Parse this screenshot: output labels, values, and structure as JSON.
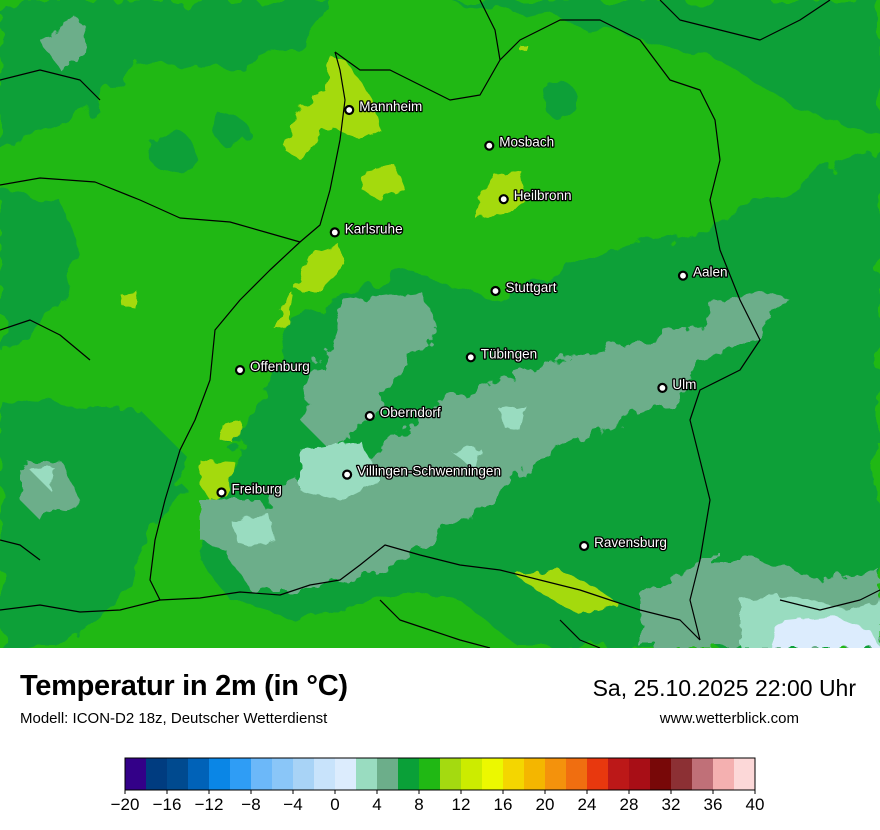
{
  "title": "Temperatur in 2m (in °C)",
  "subtitle": "Modell: ICON-D2 18z, Deutscher Wetterdienst",
  "datetime": "Sa, 25.10.2025 22:00 Uhr",
  "website": "www.wetterblick.com",
  "cities": [
    {
      "name": "Mannheim",
      "lon": 8.47,
      "lat": 49.49
    },
    {
      "name": "Mosbach",
      "lon": 9.15,
      "lat": 49.35
    },
    {
      "name": "Heilbronn",
      "lon": 9.22,
      "lat": 49.14
    },
    {
      "name": "Karlsruhe",
      "lon": 8.4,
      "lat": 49.01
    },
    {
      "name": "Aalen",
      "lon": 10.09,
      "lat": 48.84
    },
    {
      "name": "Stuttgart",
      "lon": 9.18,
      "lat": 48.78
    },
    {
      "name": "Tübingen",
      "lon": 9.06,
      "lat": 48.52
    },
    {
      "name": "Offenburg",
      "lon": 7.94,
      "lat": 48.47
    },
    {
      "name": "Ulm",
      "lon": 9.99,
      "lat": 48.4
    },
    {
      "name": "Oberndorf",
      "lon": 8.57,
      "lat": 48.29
    },
    {
      "name": "Villingen-Schwenningen",
      "lon": 8.46,
      "lat": 48.06
    },
    {
      "name": "Freiburg",
      "lon": 7.85,
      "lat": 47.99
    },
    {
      "name": "Ravensburg",
      "lon": 9.61,
      "lat": 47.78
    }
  ],
  "legend": {
    "unit": "°C",
    "min": -20,
    "max": 40,
    "step": 2,
    "tick_labels": [
      "−20",
      "−16",
      "−12",
      "−8",
      "−4",
      "0",
      "4",
      "8",
      "12",
      "16",
      "20",
      "24",
      "28",
      "32",
      "36",
      "40"
    ],
    "colors": [
      "#330088",
      "#003c80",
      "#004a8f",
      "#0062b8",
      "#0a86e6",
      "#2f9df5",
      "#6cb8f9",
      "#8ac6f8",
      "#a8d3f6",
      "#c8e3fb",
      "#dcecfd",
      "#99dcc0",
      "#6cae8a",
      "#0aa038",
      "#20b814",
      "#a4da10",
      "#ccec00",
      "#ecf800",
      "#f4d600",
      "#f4b600",
      "#f4920c",
      "#f06e10",
      "#e8380e",
      "#bc1818",
      "#a80e16",
      "#780808",
      "#8c3034",
      "#c07078",
      "#f4b0b0",
      "#fcd8d8"
    ]
  }
}
